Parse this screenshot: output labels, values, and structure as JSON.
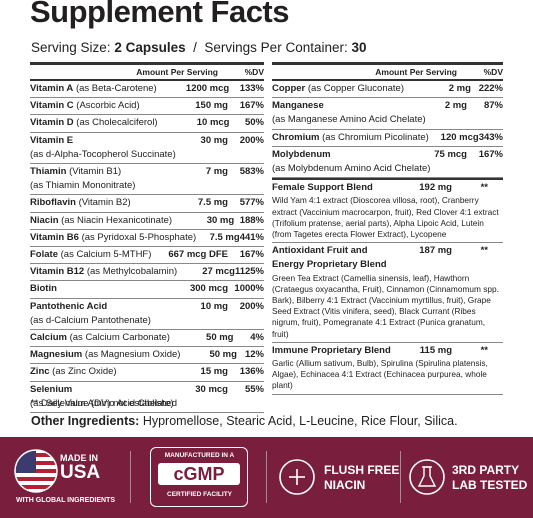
{
  "title": "Supplement Facts",
  "serving": {
    "size_label": "Serving Size:",
    "size": "2 Capsules",
    "divider": "/",
    "container_label": "Servings Per Container:",
    "container": "30"
  },
  "left": {
    "header": {
      "amount": "Amount Per Serving",
      "dv": "%DV"
    },
    "rows": [
      {
        "name": "Vitamin A",
        "note": "(as Beta-Carotene)",
        "amount": "1200 mcg",
        "dv": "133%"
      },
      {
        "name": "Vitamin C",
        "note": "(Ascorbic Acid)",
        "amount": "150 mg",
        "dv": "167%"
      },
      {
        "name": "Vitamin D",
        "note": "(as Cholecalciferol)",
        "amount": "10 mcg",
        "dv": "50%"
      },
      {
        "name": "Vitamin E",
        "amount": "30 mg",
        "dv": "200%",
        "sub": "(as d-Alpha-Tocopherol Succinate)"
      },
      {
        "name": "Thiamin",
        "note": "(Vitamin B1)",
        "amount": "7 mg",
        "dv": "583%",
        "sub": "(as Thiamin Mononitrate)"
      },
      {
        "name": "Riboflavin",
        "note": "(Vitamin B2)",
        "amount": "7.5 mg",
        "dv": "577%"
      },
      {
        "name": "Niacin",
        "note": "(as Niacin Hexanicotinate)",
        "amount": "30 mg",
        "dv": "188%"
      },
      {
        "name": "Vitamin B6",
        "note": "(as Pyridoxal 5-Phosphate)",
        "amount": "7.5 mg",
        "dv": "441%"
      },
      {
        "name": "Folate",
        "note": "(as Calcium 5-MTHF)",
        "amount": "667 mcg DFE",
        "dv": "167%"
      },
      {
        "name": "Vitamin B12",
        "note": "(as Methylcobalamin)",
        "amount": "27 mcg",
        "dv": "1125%"
      },
      {
        "name": "Biotin",
        "amount": "300 mcg",
        "dv": "1000%"
      },
      {
        "name": "Pantothenic Acid",
        "amount": "10 mg",
        "dv": "200%",
        "sub": "(as d-Calcium Pantothenate)"
      },
      {
        "name": "Calcium",
        "note": "(as Calcium Carbonate)",
        "amount": "50 mg",
        "dv": "4%"
      },
      {
        "name": "Magnesium",
        "note": "(as Magnesium Oxide)",
        "amount": "50 mg",
        "dv": "12%"
      },
      {
        "name": "Zinc",
        "note": "(as Zinc Oxide)",
        "amount": "15 mg",
        "dv": "136%"
      },
      {
        "name": "Selenium",
        "amount": "30 mcg",
        "dv": "55%",
        "sub": "(as Selenium Amino Acid Chelate)"
      }
    ]
  },
  "right": {
    "header": {
      "amount": "Amount Per Serving",
      "dv": "%DV"
    },
    "rows": [
      {
        "name": "Copper",
        "note": "(as Copper Gluconate)",
        "amount": "2 mg",
        "dv": "222%"
      },
      {
        "name": "Manganese",
        "amount": "2 mg",
        "dv": "87%",
        "sub": "(as Manganese Amino Acid Chelate)"
      },
      {
        "name": "Chromium",
        "note": "(as Chromium Picolinate)",
        "amount": "120 mcg",
        "dv": "343%"
      },
      {
        "name": "Molybdenum",
        "amount": "75 mcg",
        "dv": "167%",
        "sub": "(as Molybdenum Amino Acid Chelate)"
      }
    ],
    "blends": [
      {
        "name": "Female Support Blend",
        "amount": "192 mg",
        "dv": "**",
        "desc": "Wild Yam 4:1 extract (Dioscorea villosa, root), Cranberry extract (Vaccinium macrocarpon, fruit), Red Clover 4:1 extract (Trifolium pratense, aerial parts), Alpha Lipoic Acid, Lutein (from Tagetes erecta Flower Extract), Lycopene"
      },
      {
        "name": "Antioxidant Fruit and Energy Proprietary Blend",
        "amount": "187 mg",
        "dv": "**",
        "desc": "Green Tea Extract (Camellia sinensis, leaf), Hawthorn (Crataegus oxyacantha, Fruit), Cinnamon (Cinnamomum spp. Bark), Bilberry 4:1 Extract (Vaccinium myrtillus, fruit), Grape Seed Extract (Vitis vinifera, seed), Black Currant (Ribes nigrum, fruit), Pomegranate 4:1 Extract (Punica granatum, fruit)"
      },
      {
        "name": "Immune Proprietary Blend",
        "amount": "115 mg",
        "dv": "**",
        "desc": "Garlic (Allium sativum, Bulb), Spirulina (Spirulina platensis, Algae), Echinacea 4:1 Extract (Echinacea purpurea, whole plant)"
      }
    ]
  },
  "footnote": "** Daily Value (DV) not established",
  "other_ingredients": {
    "label": "Other Ingredients:",
    "text": "Hypromellose, Stearic Acid, L-Leucine, Rice Flour, Silica."
  },
  "badges": {
    "usa": {
      "line1": "MADE IN",
      "line2": "USA",
      "line3": "WITH GLOBAL INGREDIENTS"
    },
    "cgmp": {
      "line1": "MANUFACTURED IN A",
      "line2": "cGMP",
      "line3": "CERTIFIED FACILITY"
    },
    "niacin": {
      "line1": "FLUSH FREE",
      "line2": "NIACIN"
    },
    "lab": {
      "line1": "3RD PARTY",
      "line2": "LAB TESTED"
    }
  }
}
